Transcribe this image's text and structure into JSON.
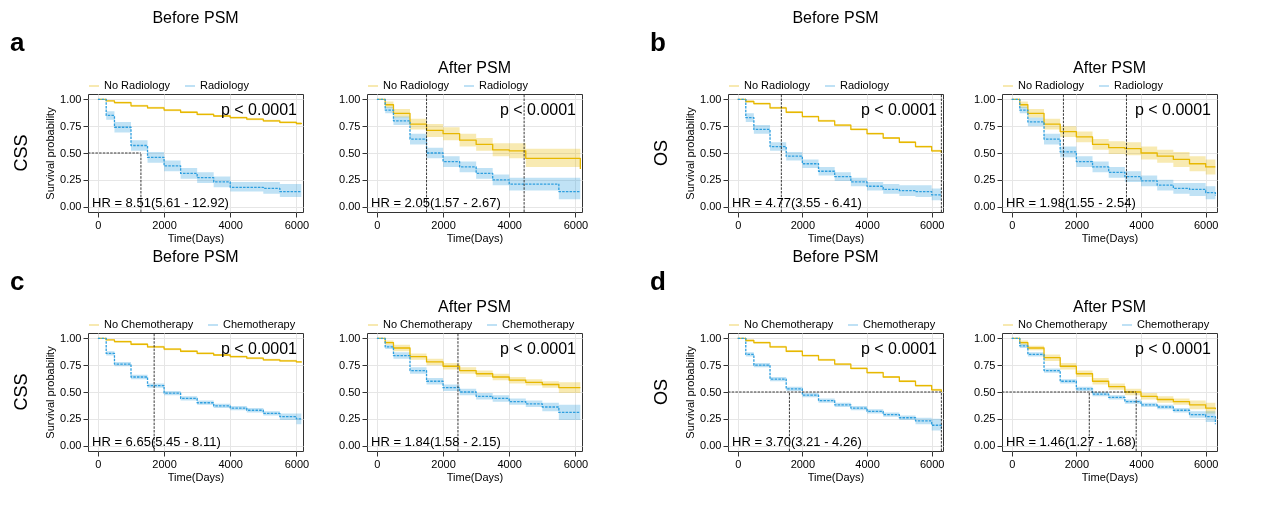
{
  "chart_data": [
    {
      "type": "step",
      "title": "Before PSM",
      "xlabel": "Time(Days)",
      "ylabel": "Survival probability",
      "annotations": [
        "p < 0.0001",
        "HR = 8.51(5.61 - 12.92)",
        "a",
        "CSS"
      ],
      "x": [
        0,
        250,
        500,
        1000,
        1500,
        2000,
        2500,
        3000,
        3500,
        4000,
        4500,
        5000,
        5500,
        6000,
        6150
      ],
      "xlim": [
        -300,
        6200
      ],
      "ylim": [
        -0.05,
        1.05
      ],
      "xticks": [
        0,
        2000,
        4000,
        6000
      ],
      "yticks": [
        {
          "value": 0,
          "label": "0.00"
        },
        {
          "value": 0.25,
          "label": "0.25"
        },
        {
          "value": 0.5,
          "label": "0.50"
        },
        {
          "value": 0.75,
          "label": "0.75"
        },
        {
          "value": 1,
          "label": "1.00"
        }
      ],
      "grid": true,
      "legend": "top",
      "ref_lines": [
        {
          "axis": "x",
          "value": 1300
        },
        {
          "axis": "y",
          "value": 0.5
        }
      ],
      "series": [
        {
          "name": "No Radiology",
          "color": "#e7b800",
          "line_style": "solid",
          "values": [
            1,
            0.985,
            0.97,
            0.94,
            0.92,
            0.9,
            0.88,
            0.86,
            0.845,
            0.83,
            0.815,
            0.8,
            0.785,
            0.775,
            0.77
          ],
          "lower": [
            1,
            0.98,
            0.96,
            0.93,
            0.91,
            0.89,
            0.87,
            0.85,
            0.835,
            0.82,
            0.805,
            0.79,
            0.775,
            0.765,
            0.76
          ],
          "upper": [
            1,
            0.99,
            0.98,
            0.95,
            0.93,
            0.91,
            0.89,
            0.87,
            0.855,
            0.84,
            0.825,
            0.81,
            0.795,
            0.785,
            0.78
          ]
        },
        {
          "name": "Radiology",
          "color": "#2e9fdf",
          "line_style": "dashed",
          "values": [
            1,
            0.85,
            0.74,
            0.57,
            0.46,
            0.38,
            0.31,
            0.27,
            0.23,
            0.18,
            0.18,
            0.17,
            0.14,
            0.14,
            0.14
          ],
          "lower": [
            1,
            0.81,
            0.69,
            0.52,
            0.41,
            0.33,
            0.26,
            0.22,
            0.18,
            0.14,
            0.14,
            0.12,
            0.09,
            0.09,
            0.09
          ],
          "upper": [
            1,
            0.89,
            0.79,
            0.62,
            0.51,
            0.43,
            0.36,
            0.32,
            0.28,
            0.23,
            0.23,
            0.23,
            0.21,
            0.21,
            0.21
          ]
        }
      ]
    },
    {
      "type": "step",
      "title": "After PSM",
      "xlabel": "Time(Days)",
      "annotations": [
        "p < 0.0001",
        "HR = 2.05(1.57 - 2.67)"
      ],
      "x": [
        0,
        250,
        500,
        1000,
        1500,
        2000,
        2500,
        3000,
        3500,
        4000,
        4500,
        5000,
        5500,
        6000,
        6150
      ],
      "xlim": [
        -300,
        6200
      ],
      "ylim": [
        -0.05,
        1.05
      ],
      "xticks": [
        0,
        2000,
        4000,
        6000
      ],
      "yticks": [
        {
          "value": 0,
          "label": "0.00"
        },
        {
          "value": 0.25,
          "label": "0.25"
        },
        {
          "value": 0.5,
          "label": "0.50"
        },
        {
          "value": 0.75,
          "label": "0.75"
        },
        {
          "value": 1,
          "label": "1.00"
        }
      ],
      "grid": true,
      "legend": "top",
      "ref_lines": [
        {
          "axis": "x",
          "value": 1500
        },
        {
          "axis": "x",
          "value": 4450
        }
      ],
      "series": [
        {
          "name": "No Radiology",
          "color": "#e7b800",
          "line_style": "solid",
          "values": [
            1,
            0.95,
            0.87,
            0.77,
            0.71,
            0.68,
            0.62,
            0.58,
            0.53,
            0.52,
            0.45,
            0.45,
            0.45,
            0.45,
            0.35
          ],
          "lower": [
            1,
            0.92,
            0.83,
            0.72,
            0.65,
            0.62,
            0.56,
            0.52,
            0.47,
            0.45,
            0.37,
            0.37,
            0.37,
            0.37,
            0.25
          ],
          "upper": [
            1,
            0.98,
            0.91,
            0.82,
            0.77,
            0.74,
            0.68,
            0.64,
            0.59,
            0.59,
            0.54,
            0.54,
            0.54,
            0.54,
            0.45
          ]
        },
        {
          "name": "Radiology",
          "color": "#2e9fdf",
          "line_style": "dashed",
          "values": [
            1,
            0.9,
            0.8,
            0.63,
            0.5,
            0.42,
            0.37,
            0.31,
            0.25,
            0.21,
            0.21,
            0.21,
            0.14,
            0.14,
            0.14
          ],
          "lower": [
            1,
            0.87,
            0.76,
            0.58,
            0.45,
            0.37,
            0.32,
            0.26,
            0.2,
            0.15,
            0.15,
            0.15,
            0.07,
            0.07,
            0.07
          ],
          "upper": [
            1,
            0.93,
            0.84,
            0.68,
            0.55,
            0.47,
            0.42,
            0.36,
            0.3,
            0.27,
            0.27,
            0.27,
            0.27,
            0.27,
            0.27
          ]
        }
      ]
    },
    {
      "type": "step",
      "title": "Before PSM",
      "xlabel": "Time(Days)",
      "ylabel": "Survival probability",
      "annotations": [
        "p < 0.0001",
        "HR = 4.77(3.55 - 6.41)",
        "b",
        "OS"
      ],
      "x": [
        0,
        250,
        500,
        1000,
        1500,
        2000,
        2500,
        3000,
        3500,
        4000,
        4500,
        5000,
        5500,
        6000,
        6300
      ],
      "xlim": [
        -300,
        6350
      ],
      "ylim": [
        -0.05,
        1.05
      ],
      "xticks": [
        0,
        2000,
        4000,
        6000
      ],
      "yticks": [
        {
          "value": 0,
          "label": "0.00"
        },
        {
          "value": 0.25,
          "label": "0.25"
        },
        {
          "value": 0.5,
          "label": "0.50"
        },
        {
          "value": 0.75,
          "label": "0.75"
        },
        {
          "value": 1,
          "label": "1.00"
        }
      ],
      "grid": true,
      "legend": "top",
      "ref_lines": [
        {
          "axis": "x",
          "value": 1350
        },
        {
          "axis": "x",
          "value": 6300
        }
      ],
      "series": [
        {
          "name": "No Radiology",
          "color": "#e7b800",
          "line_style": "solid",
          "values": [
            1,
            0.98,
            0.96,
            0.92,
            0.88,
            0.84,
            0.8,
            0.76,
            0.72,
            0.68,
            0.64,
            0.6,
            0.56,
            0.52,
            0.5
          ],
          "lower": [
            1,
            0.97,
            0.95,
            0.91,
            0.87,
            0.83,
            0.79,
            0.75,
            0.71,
            0.67,
            0.63,
            0.59,
            0.55,
            0.51,
            0.49
          ],
          "upper": [
            1,
            0.99,
            0.97,
            0.93,
            0.89,
            0.85,
            0.81,
            0.77,
            0.73,
            0.69,
            0.65,
            0.61,
            0.57,
            0.53,
            0.51
          ]
        },
        {
          "name": "Radiology",
          "color": "#2e9fdf",
          "line_style": "dashed",
          "values": [
            1,
            0.83,
            0.72,
            0.56,
            0.47,
            0.4,
            0.33,
            0.28,
            0.23,
            0.19,
            0.16,
            0.15,
            0.14,
            0.11,
            0.11
          ],
          "lower": [
            1,
            0.79,
            0.68,
            0.52,
            0.43,
            0.36,
            0.29,
            0.24,
            0.19,
            0.15,
            0.12,
            0.1,
            0.09,
            0.06,
            0.06
          ],
          "upper": [
            1,
            0.87,
            0.76,
            0.6,
            0.51,
            0.44,
            0.37,
            0.32,
            0.27,
            0.23,
            0.21,
            0.2,
            0.2,
            0.17,
            0.17
          ]
        }
      ]
    },
    {
      "type": "step",
      "title": "After PSM",
      "xlabel": "Time(Days)",
      "annotations": [
        "p < 0.0001",
        "HR = 1.98(1.55 - 2.54)"
      ],
      "x": [
        0,
        250,
        500,
        1000,
        1500,
        2000,
        2500,
        3000,
        3500,
        4000,
        4500,
        5000,
        5500,
        6000,
        6300
      ],
      "xlim": [
        -300,
        6350
      ],
      "ylim": [
        -0.05,
        1.05
      ],
      "xticks": [
        0,
        2000,
        4000,
        6000
      ],
      "yticks": [
        {
          "value": 0,
          "label": "0.00"
        },
        {
          "value": 0.25,
          "label": "0.25"
        },
        {
          "value": 0.5,
          "label": "0.50"
        },
        {
          "value": 0.75,
          "label": "0.75"
        },
        {
          "value": 1,
          "label": "1.00"
        }
      ],
      "grid": true,
      "legend": "top",
      "ref_lines": [
        {
          "axis": "x",
          "value": 1600
        },
        {
          "axis": "x",
          "value": 3550
        }
      ],
      "series": [
        {
          "name": "No Radiology",
          "color": "#e7b800",
          "line_style": "solid",
          "values": [
            1,
            0.95,
            0.87,
            0.77,
            0.7,
            0.65,
            0.58,
            0.55,
            0.54,
            0.5,
            0.47,
            0.44,
            0.4,
            0.37,
            0.37
          ],
          "lower": [
            1,
            0.92,
            0.83,
            0.72,
            0.65,
            0.6,
            0.53,
            0.49,
            0.48,
            0.44,
            0.41,
            0.37,
            0.33,
            0.3,
            0.3
          ],
          "upper": [
            1,
            0.98,
            0.91,
            0.82,
            0.75,
            0.7,
            0.63,
            0.61,
            0.6,
            0.56,
            0.53,
            0.51,
            0.47,
            0.44,
            0.44
          ]
        },
        {
          "name": "Radiology",
          "color": "#2e9fdf",
          "line_style": "dashed",
          "values": [
            1,
            0.9,
            0.79,
            0.63,
            0.51,
            0.42,
            0.37,
            0.32,
            0.28,
            0.24,
            0.2,
            0.17,
            0.16,
            0.13,
            0.1
          ],
          "lower": [
            1,
            0.87,
            0.75,
            0.58,
            0.46,
            0.37,
            0.32,
            0.27,
            0.23,
            0.19,
            0.15,
            0.12,
            0.1,
            0.07,
            0.04
          ],
          "upper": [
            1,
            0.93,
            0.83,
            0.68,
            0.56,
            0.47,
            0.42,
            0.37,
            0.33,
            0.29,
            0.25,
            0.22,
            0.22,
            0.19,
            0.17
          ]
        }
      ]
    },
    {
      "type": "step",
      "title": "Before PSM",
      "xlabel": "Time(Days)",
      "ylabel": "Survival probability",
      "annotations": [
        "p < 0.0001",
        "HR = 6.65(5.45 - 8.11)",
        "c",
        "CSS"
      ],
      "x": [
        0,
        250,
        500,
        1000,
        1500,
        2000,
        2500,
        3000,
        3500,
        4000,
        4500,
        5000,
        5500,
        6000,
        6150
      ],
      "xlim": [
        -300,
        6200
      ],
      "ylim": [
        -0.05,
        1.05
      ],
      "xticks": [
        0,
        2000,
        4000,
        6000
      ],
      "yticks": [
        {
          "value": 0,
          "label": "0.00"
        },
        {
          "value": 0.25,
          "label": "0.25"
        },
        {
          "value": 0.5,
          "label": "0.50"
        },
        {
          "value": 0.75,
          "label": "0.75"
        },
        {
          "value": 1,
          "label": "1.00"
        }
      ],
      "grid": true,
      "legend": "top",
      "ref_lines": [
        {
          "axis": "x",
          "value": 1700
        }
      ],
      "series": [
        {
          "name": "No Chemotherapy",
          "color": "#e7b800",
          "line_style": "solid",
          "values": [
            1,
            0.985,
            0.97,
            0.945,
            0.92,
            0.9,
            0.88,
            0.86,
            0.845,
            0.83,
            0.815,
            0.8,
            0.79,
            0.78,
            0.775
          ],
          "lower": [
            1,
            0.98,
            0.96,
            0.935,
            0.91,
            0.89,
            0.87,
            0.85,
            0.835,
            0.82,
            0.805,
            0.79,
            0.78,
            0.77,
            0.765
          ],
          "upper": [
            1,
            0.99,
            0.98,
            0.955,
            0.93,
            0.91,
            0.89,
            0.87,
            0.855,
            0.84,
            0.825,
            0.81,
            0.8,
            0.79,
            0.785
          ]
        },
        {
          "name": "Chemotherapy",
          "color": "#2e9fdf",
          "line_style": "dashed",
          "values": [
            1,
            0.86,
            0.76,
            0.64,
            0.56,
            0.49,
            0.44,
            0.4,
            0.37,
            0.35,
            0.33,
            0.3,
            0.27,
            0.25,
            0.25
          ],
          "lower": [
            1,
            0.84,
            0.74,
            0.62,
            0.54,
            0.47,
            0.42,
            0.38,
            0.35,
            0.33,
            0.31,
            0.28,
            0.24,
            0.2,
            0.2
          ],
          "upper": [
            1,
            0.88,
            0.78,
            0.66,
            0.58,
            0.51,
            0.46,
            0.42,
            0.39,
            0.37,
            0.35,
            0.32,
            0.3,
            0.3,
            0.3
          ]
        }
      ]
    },
    {
      "type": "step",
      "title": "After PSM",
      "xlabel": "Time(Days)",
      "annotations": [
        "p < 0.0001",
        "HR = 1.84(1.58 - 2.15)"
      ],
      "x": [
        0,
        250,
        500,
        1000,
        1500,
        2000,
        2500,
        3000,
        3500,
        4000,
        4500,
        5000,
        5500,
        6000,
        6150
      ],
      "xlim": [
        -300,
        6200
      ],
      "ylim": [
        -0.05,
        1.05
      ],
      "xticks": [
        0,
        2000,
        4000,
        6000
      ],
      "yticks": [
        {
          "value": 0,
          "label": "0.00"
        },
        {
          "value": 0.25,
          "label": "0.25"
        },
        {
          "value": 0.5,
          "label": "0.50"
        },
        {
          "value": 0.75,
          "label": "0.75"
        },
        {
          "value": 1,
          "label": "1.00"
        }
      ],
      "grid": true,
      "legend": "top",
      "ref_lines": [
        {
          "axis": "x",
          "value": 2450
        }
      ],
      "series": [
        {
          "name": "No Chemotherapy",
          "color": "#e7b800",
          "line_style": "solid",
          "values": [
            1,
            0.96,
            0.91,
            0.83,
            0.78,
            0.74,
            0.7,
            0.67,
            0.64,
            0.61,
            0.59,
            0.57,
            0.54,
            0.54,
            0.54
          ],
          "lower": [
            1,
            0.94,
            0.88,
            0.8,
            0.75,
            0.71,
            0.67,
            0.64,
            0.61,
            0.58,
            0.56,
            0.54,
            0.49,
            0.49,
            0.49
          ],
          "upper": [
            1,
            0.98,
            0.94,
            0.86,
            0.81,
            0.77,
            0.73,
            0.7,
            0.67,
            0.64,
            0.62,
            0.6,
            0.59,
            0.59,
            0.59
          ]
        },
        {
          "name": "Chemotherapy",
          "color": "#2e9fdf",
          "line_style": "dashed",
          "values": [
            1,
            0.92,
            0.84,
            0.7,
            0.6,
            0.54,
            0.5,
            0.46,
            0.44,
            0.41,
            0.39,
            0.36,
            0.31,
            0.31,
            0.31
          ],
          "lower": [
            1,
            0.9,
            0.81,
            0.67,
            0.57,
            0.51,
            0.47,
            0.43,
            0.41,
            0.38,
            0.36,
            0.32,
            0.24,
            0.24,
            0.24
          ],
          "upper": [
            1,
            0.94,
            0.87,
            0.73,
            0.63,
            0.57,
            0.53,
            0.49,
            0.47,
            0.44,
            0.42,
            0.4,
            0.38,
            0.38,
            0.38
          ]
        }
      ]
    },
    {
      "type": "step",
      "title": "Before PSM",
      "xlabel": "Time(Days)",
      "ylabel": "Survival probability",
      "annotations": [
        "p < 0.0001",
        "HR = 3.70(3.21 - 4.26)",
        "d",
        "OS"
      ],
      "x": [
        0,
        250,
        500,
        1000,
        1500,
        2000,
        2500,
        3000,
        3500,
        4000,
        4500,
        5000,
        5500,
        6000,
        6300
      ],
      "xlim": [
        -300,
        6350
      ],
      "ylim": [
        -0.05,
        1.05
      ],
      "xticks": [
        0,
        2000,
        4000,
        6000
      ],
      "yticks": [
        {
          "value": 0,
          "label": "0.00"
        },
        {
          "value": 0.25,
          "label": "0.25"
        },
        {
          "value": 0.5,
          "label": "0.50"
        },
        {
          "value": 0.75,
          "label": "0.75"
        },
        {
          "value": 1,
          "label": "1.00"
        }
      ],
      "grid": true,
      "legend": "top",
      "ref_lines": [
        {
          "axis": "x",
          "value": 1600
        },
        {
          "axis": "x",
          "value": 6300
        },
        {
          "axis": "y",
          "value": 0.5
        }
      ],
      "series": [
        {
          "name": "No Chemotherapy",
          "color": "#e7b800",
          "line_style": "solid",
          "values": [
            1,
            0.98,
            0.96,
            0.92,
            0.88,
            0.84,
            0.8,
            0.76,
            0.72,
            0.68,
            0.64,
            0.6,
            0.56,
            0.52,
            0.5
          ],
          "lower": [
            1,
            0.97,
            0.95,
            0.91,
            0.87,
            0.83,
            0.79,
            0.75,
            0.71,
            0.67,
            0.63,
            0.59,
            0.55,
            0.51,
            0.49
          ],
          "upper": [
            1,
            0.99,
            0.97,
            0.93,
            0.89,
            0.85,
            0.81,
            0.77,
            0.73,
            0.69,
            0.65,
            0.61,
            0.57,
            0.53,
            0.51
          ]
        },
        {
          "name": "Chemotherapy",
          "color": "#2e9fdf",
          "line_style": "dashed",
          "values": [
            1,
            0.85,
            0.75,
            0.62,
            0.53,
            0.47,
            0.42,
            0.38,
            0.35,
            0.32,
            0.29,
            0.26,
            0.23,
            0.19,
            0.16
          ],
          "lower": [
            1,
            0.83,
            0.73,
            0.6,
            0.51,
            0.45,
            0.4,
            0.36,
            0.33,
            0.3,
            0.27,
            0.24,
            0.2,
            0.14,
            0.1
          ],
          "upper": [
            1,
            0.87,
            0.77,
            0.64,
            0.55,
            0.49,
            0.44,
            0.4,
            0.37,
            0.34,
            0.31,
            0.28,
            0.26,
            0.25,
            0.22
          ]
        }
      ]
    },
    {
      "type": "step",
      "title": "After PSM",
      "xlabel": "Time(Days)",
      "annotations": [
        "p < 0.0001",
        "HR = 1.46(1.27 - 1.68)"
      ],
      "x": [
        0,
        250,
        500,
        1000,
        1500,
        2000,
        2500,
        3000,
        3500,
        4000,
        4500,
        5000,
        5500,
        6000,
        6300
      ],
      "xlim": [
        -300,
        6350
      ],
      "ylim": [
        -0.05,
        1.05
      ],
      "xticks": [
        0,
        2000,
        4000,
        6000
      ],
      "yticks": [
        {
          "value": 0,
          "label": "0.00"
        },
        {
          "value": 0.25,
          "label": "0.25"
        },
        {
          "value": 0.5,
          "label": "0.50"
        },
        {
          "value": 0.75,
          "label": "0.75"
        },
        {
          "value": 1,
          "label": "1.00"
        }
      ],
      "grid": true,
      "legend": "top",
      "ref_lines": [
        {
          "axis": "x",
          "value": 2400
        },
        {
          "axis": "x",
          "value": 3850
        },
        {
          "axis": "y",
          "value": 0.5
        }
      ],
      "series": [
        {
          "name": "No Chemotherapy",
          "color": "#e7b800",
          "line_style": "solid",
          "values": [
            1,
            0.96,
            0.91,
            0.82,
            0.74,
            0.67,
            0.6,
            0.55,
            0.5,
            0.46,
            0.43,
            0.41,
            0.38,
            0.35,
            0.34
          ],
          "lower": [
            1,
            0.94,
            0.89,
            0.79,
            0.71,
            0.64,
            0.57,
            0.52,
            0.47,
            0.43,
            0.4,
            0.38,
            0.34,
            0.3,
            0.28
          ],
          "upper": [
            1,
            0.98,
            0.93,
            0.85,
            0.77,
            0.7,
            0.63,
            0.58,
            0.53,
            0.49,
            0.46,
            0.44,
            0.42,
            0.4,
            0.4
          ]
        },
        {
          "name": "Chemotherapy",
          "color": "#2e9fdf",
          "line_style": "dashed",
          "values": [
            1,
            0.93,
            0.85,
            0.7,
            0.6,
            0.53,
            0.48,
            0.45,
            0.41,
            0.38,
            0.36,
            0.33,
            0.29,
            0.27,
            0.2
          ],
          "lower": [
            1,
            0.91,
            0.83,
            0.68,
            0.58,
            0.51,
            0.46,
            0.43,
            0.39,
            0.36,
            0.34,
            0.31,
            0.26,
            0.22,
            0.13
          ],
          "upper": [
            1,
            0.95,
            0.87,
            0.72,
            0.62,
            0.55,
            0.5,
            0.47,
            0.43,
            0.4,
            0.38,
            0.35,
            0.32,
            0.32,
            0.27
          ]
        }
      ]
    }
  ]
}
